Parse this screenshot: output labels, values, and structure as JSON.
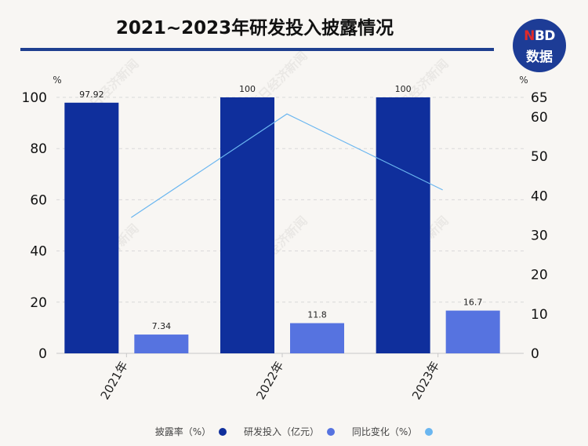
{
  "title": "2021~2023年研发投入披露情况",
  "logo": {
    "line1_accent": "N",
    "line1_rest": "BD",
    "line2": "数据"
  },
  "watermark_text": "每日经济新闻",
  "colors": {
    "rate": "#0f2f9c",
    "rd": "#5673e0",
    "yoy": "#6ab6f0"
  },
  "chart_data": {
    "type": "bar",
    "title": "2021~2023年研发投入披露情况",
    "categories": [
      "2021年",
      "2022年",
      "2023年"
    ],
    "left_axis": {
      "unit": "%",
      "ylim": [
        0,
        100
      ],
      "ticks": [
        0,
        20,
        40,
        60,
        80,
        100
      ]
    },
    "right_axis": {
      "unit": "%",
      "ylim": [
        0,
        65
      ],
      "ticks": [
        0,
        10,
        20,
        30,
        40,
        50,
        60,
        65
      ]
    },
    "series": [
      {
        "name": "披露率（%）",
        "type": "bar",
        "axis": "left",
        "values": [
          97.92,
          100,
          100
        ],
        "labels": [
          "97.92",
          "100",
          "100"
        ]
      },
      {
        "name": "研发投入（亿元）",
        "type": "bar",
        "axis": "left",
        "values": [
          7.34,
          11.8,
          16.7
        ],
        "labels": [
          "7.34",
          "11.8",
          "16.7"
        ]
      },
      {
        "name": "同比变化（%）",
        "type": "line",
        "axis": "right",
        "values": [
          34.5,
          60.8,
          41.5
        ]
      }
    ],
    "grid": true,
    "legend": "bottom"
  }
}
